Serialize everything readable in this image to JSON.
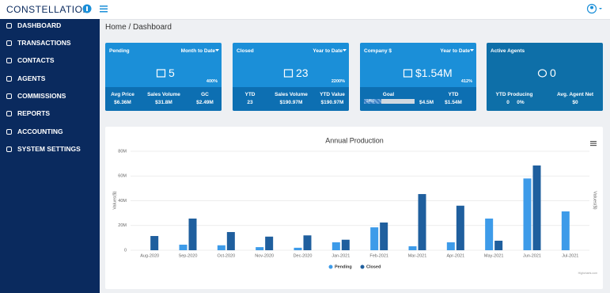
{
  "header": {
    "logo": "CONSTELLATION"
  },
  "sidebar": {
    "items": [
      "DASHBOARD",
      "TRANSACTIONS",
      "CONTACTS",
      "AGENTS",
      "COMMISSIONS",
      "REPORTS",
      "ACCOUNTING",
      "SYSTEM SETTINGS"
    ]
  },
  "breadcrumb": "Home / Dashboard",
  "cards": [
    {
      "title": "Pending",
      "period": "Month to Date",
      "value": "5",
      "change": "400%",
      "stats": [
        {
          "label": "Avg Price",
          "value": "$6.36M"
        },
        {
          "label": "Sales Volume",
          "value": "$31.8M"
        },
        {
          "label": "GC",
          "value": "$2.49M"
        }
      ]
    },
    {
      "title": "Closed",
      "period": "Year to Date",
      "value": "23",
      "change": "2200%",
      "stats": [
        {
          "label": "YTD",
          "value": "23"
        },
        {
          "label": "Sales Volume",
          "value": "$190.97M"
        },
        {
          "label": "YTD Value",
          "value": "$190.97M"
        }
      ]
    },
    {
      "title": "Company $",
      "period": "Year to Date",
      "value": "$1.54M",
      "change": "412%",
      "goal": {
        "label": "Goal",
        "progress": {
          "value": 34,
          "label": "34%"
        },
        "value": "$4.5M"
      },
      "stats": [
        {
          "label": "YTD",
          "value": "$1.54M"
        }
      ]
    },
    {
      "title": "Active Agents",
      "value": "0",
      "stats": [
        {
          "label": "YTD Producing",
          "values": [
            "0",
            "0%"
          ]
        },
        {
          "label": "Avg. Agent Net",
          "value": "$0"
        }
      ]
    }
  ],
  "chart_data": {
    "type": "bar",
    "title": "Annual Production",
    "y_label": "Values($)",
    "y2_label": "Values($)",
    "credits": "Highcharts.com",
    "categories": [
      "Aug-2020",
      "Sep-2020",
      "Oct-2020",
      "Nov-2020",
      "Dec-2020",
      "Jan-2021",
      "Feb-2021",
      "Mar-2021",
      "Apr-2021",
      "May-2021",
      "Jun-2021",
      "Jul-2021"
    ],
    "series": [
      {
        "name": "Pending",
        "color": "#3d9be9",
        "values": [
          0,
          4500000,
          4000000,
          2500000,
          2000000,
          6400000,
          18500000,
          3200000,
          6400000,
          25600000,
          58000000,
          31400000
        ]
      },
      {
        "name": "Closed",
        "color": "#1f5f9e",
        "values": [
          11500000,
          25600000,
          14700000,
          11000000,
          12000000,
          8500000,
          22400000,
          45400000,
          36000000,
          7700000,
          68500000,
          0
        ]
      }
    ],
    "ylim": [
      0,
      80000000
    ],
    "yticks": [
      0,
      {
        "value": 20000000,
        "label": "20M"
      },
      {
        "value": 40000000,
        "label": "40M"
      },
      {
        "value": 60000000,
        "label": "60M"
      },
      {
        "value": 80000000,
        "label": "80M"
      }
    ],
    "grid": true,
    "legend": "bottom"
  }
}
